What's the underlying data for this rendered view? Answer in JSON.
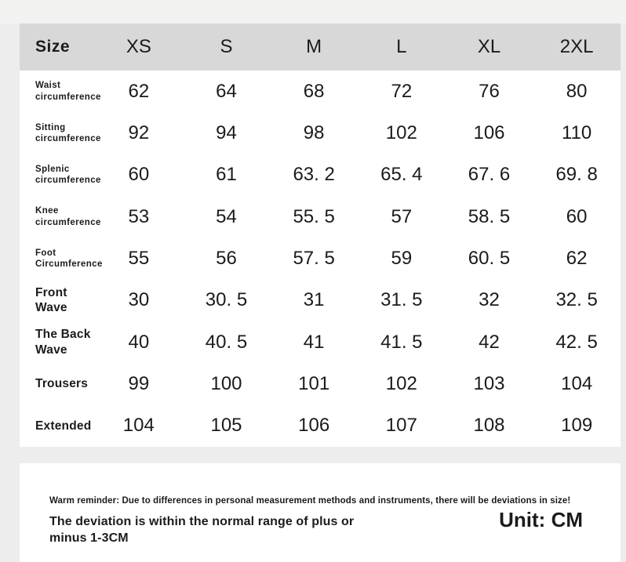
{
  "colors": {
    "page_background": "#ededed",
    "card_background": "#ffffff",
    "header_background": "#d8d8d8",
    "text": "#1b1b1b"
  },
  "table": {
    "header": {
      "size_label": "Size",
      "sizes": [
        "XS",
        "S",
        "M",
        "L",
        "XL",
        "2XL"
      ]
    },
    "rows": [
      {
        "label": "Waist circumference",
        "values": [
          "62",
          "64",
          "68",
          "72",
          "76",
          "80"
        ]
      },
      {
        "label": "Sitting circumference",
        "values": [
          "92",
          "94",
          "98",
          "102",
          "106",
          "110"
        ]
      },
      {
        "label": "Splenic circumference",
        "values": [
          "60",
          "61",
          "63. 2",
          "65. 4",
          "67. 6",
          "69. 8"
        ]
      },
      {
        "label": "Knee circumference",
        "values": [
          "53",
          "54",
          "55. 5",
          "57",
          "58. 5",
          "60"
        ]
      },
      {
        "label": "Foot Circumference",
        "values": [
          "55",
          "56",
          "57. 5",
          "59",
          "60. 5",
          "62"
        ]
      },
      {
        "label": "Front Wave",
        "values": [
          "30",
          "30. 5",
          "31",
          "31. 5",
          "32",
          "32. 5"
        ]
      },
      {
        "label": "The Back Wave",
        "values": [
          "40",
          "40. 5",
          "41",
          "41. 5",
          "42",
          "42. 5"
        ]
      },
      {
        "label": "Trousers",
        "values": [
          "99",
          "100",
          "101",
          "102",
          "103",
          "104"
        ]
      },
      {
        "label": "Extended",
        "values": [
          "104",
          "105",
          "106",
          "107",
          "108",
          "109"
        ]
      }
    ]
  },
  "footer": {
    "reminder": "Warm reminder: Due to differences in personal measurement methods and instruments, there will be deviations in size!",
    "deviation": "The deviation is within the normal range of plus or minus 1-3CM",
    "unit": "Unit: CM"
  }
}
